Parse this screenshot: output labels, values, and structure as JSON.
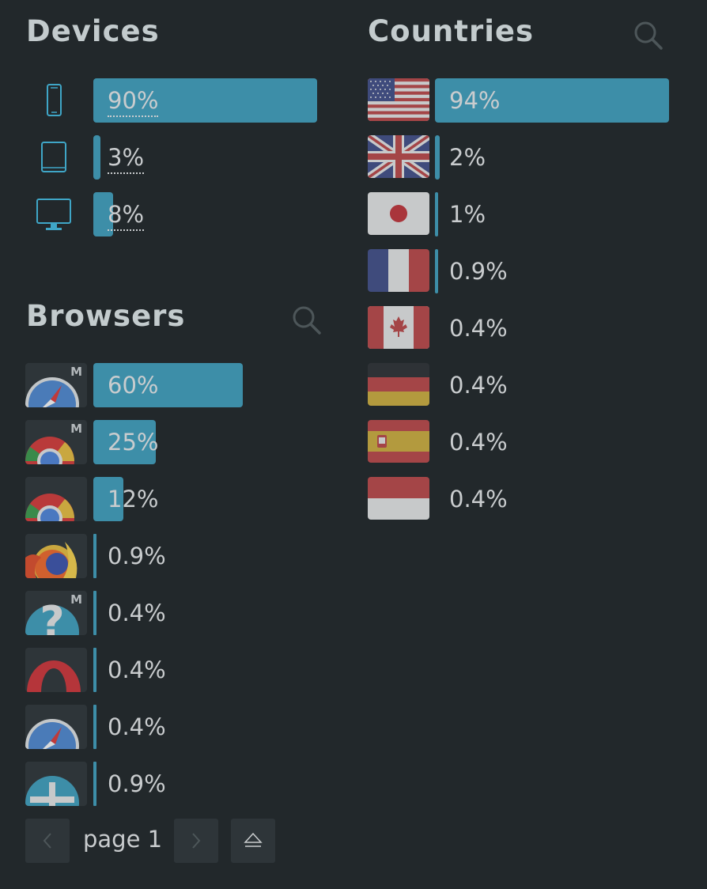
{
  "devices": {
    "title": "Devices",
    "items": [
      {
        "icon": "phone-icon",
        "percent": "90%",
        "share": 90
      },
      {
        "icon": "tablet-icon",
        "percent": "3%",
        "share": 3
      },
      {
        "icon": "desktop-icon",
        "percent": "8%",
        "share": 8
      }
    ]
  },
  "countries": {
    "title": "Countries",
    "search_icon": "search-icon",
    "items": [
      {
        "flag": "usa-flag-icon",
        "percent": "94%",
        "share": 94
      },
      {
        "flag": "uk-flag-icon",
        "percent": "2%",
        "share": 2
      },
      {
        "flag": "japan-flag-icon",
        "percent": "1%",
        "share": 1
      },
      {
        "flag": "france-flag-icon",
        "percent": "0.9%",
        "share": 0.9
      },
      {
        "flag": "canada-flag-icon",
        "percent": "0.4%",
        "share": 0.4
      },
      {
        "flag": "germany-flag-icon",
        "percent": "0.4%",
        "share": 0.4
      },
      {
        "flag": "spain-flag-icon",
        "percent": "0.4%",
        "share": 0.4
      },
      {
        "flag": "indonesia-flag-icon",
        "percent": "0.4%",
        "share": 0.4
      }
    ]
  },
  "browsers": {
    "title": "Browsers",
    "search_icon": "search-icon",
    "items": [
      {
        "icon": "safari-icon",
        "badge": "M",
        "percent": "60%",
        "share": 60
      },
      {
        "icon": "chrome-icon",
        "badge": "M",
        "percent": "25%",
        "share": 25
      },
      {
        "icon": "chrome-icon",
        "badge": "",
        "percent": "12%",
        "share": 12
      },
      {
        "icon": "firefox-icon",
        "badge": "",
        "percent": "0.9%",
        "share": 0.9
      },
      {
        "icon": "unknown-browser-icon",
        "badge": "M",
        "percent": "0.4%",
        "share": 0.4
      },
      {
        "icon": "opera-icon",
        "badge": "",
        "percent": "0.4%",
        "share": 0.4
      },
      {
        "icon": "safari-icon",
        "badge": "",
        "percent": "0.4%",
        "share": 0.4
      },
      {
        "icon": "plus-browser-icon",
        "badge": "",
        "percent": "0.9%",
        "share": 0.9
      }
    ]
  },
  "pagination": {
    "label": "page 1",
    "prev_icon": "chevron-left-icon",
    "next_icon": "chevron-right-icon",
    "collapse_icon": "eject-icon"
  },
  "colors": {
    "background": "#22282b",
    "bar": "#3d8ea8",
    "text": "#c9ccce",
    "icon_accent": "#3fa6c7"
  }
}
